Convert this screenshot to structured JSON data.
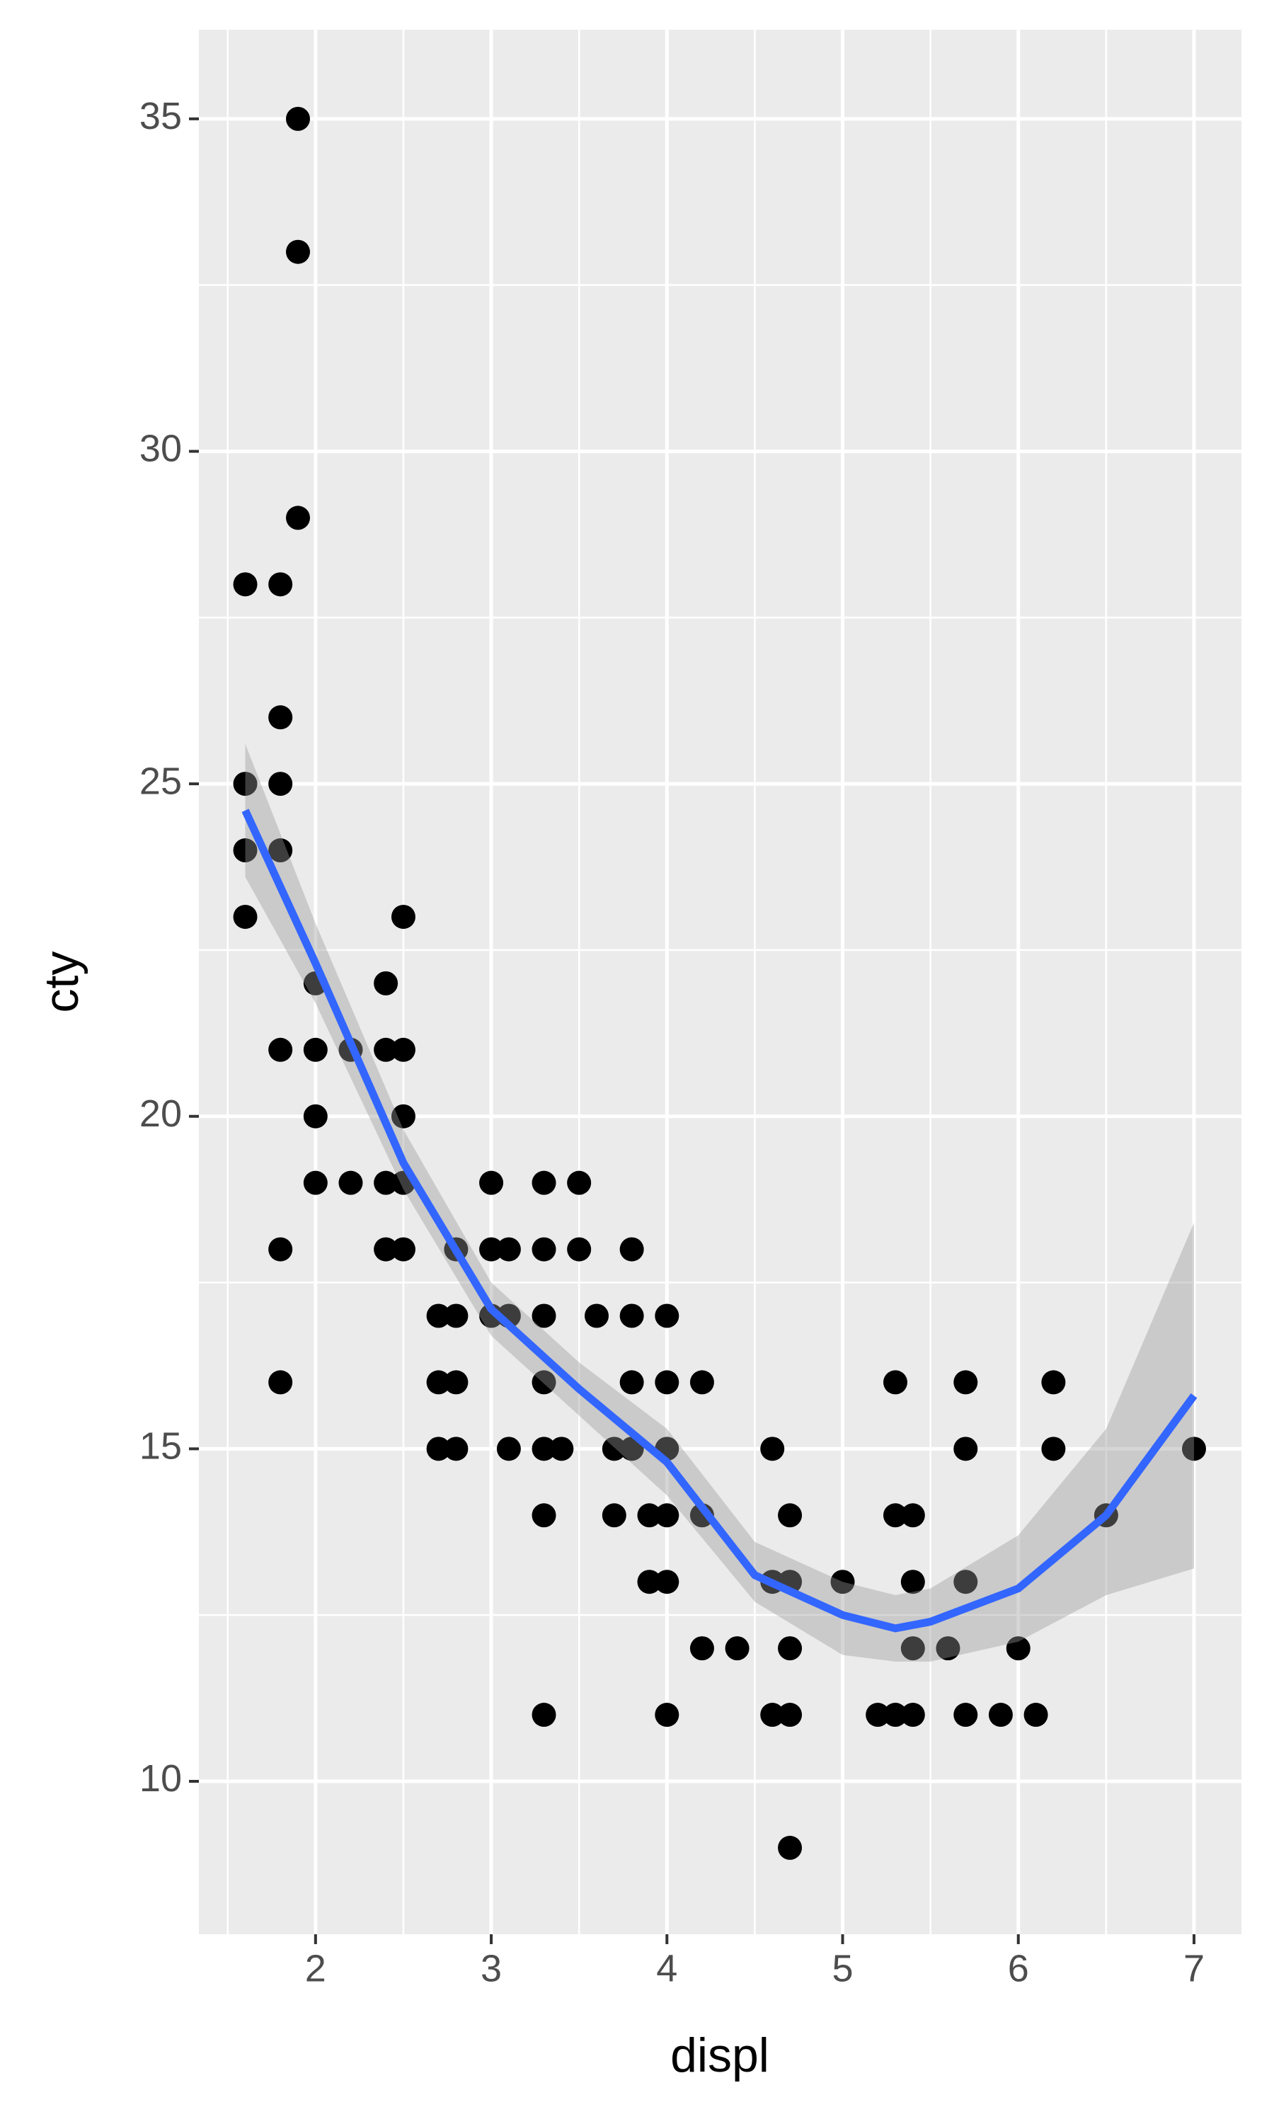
{
  "chart_data": {
    "type": "scatter",
    "x_label": "displ",
    "y_label": "cty",
    "x": [
      1.6,
      1.6,
      1.6,
      1.6,
      1.8,
      1.8,
      1.8,
      1.8,
      1.8,
      1.8,
      1.8,
      1.9,
      1.9,
      1.9,
      2.0,
      2.0,
      2.0,
      2.0,
      2.2,
      2.2,
      2.4,
      2.4,
      2.4,
      2.4,
      2.5,
      2.5,
      2.5,
      2.5,
      2.5,
      2.7,
      2.7,
      2.7,
      2.8,
      2.8,
      2.8,
      2.8,
      3.0,
      3.0,
      3.0,
      3.1,
      3.1,
      3.1,
      3.3,
      3.3,
      3.3,
      3.3,
      3.3,
      3.3,
      3.3,
      3.4,
      3.5,
      3.5,
      3.6,
      3.7,
      3.7,
      3.8,
      3.8,
      3.8,
      3.8,
      3.9,
      3.9,
      4.0,
      4.0,
      4.0,
      4.0,
      4.0,
      4.0,
      4.2,
      4.2,
      4.2,
      4.4,
      4.6,
      4.6,
      4.6,
      4.7,
      4.7,
      4.7,
      4.7,
      4.7,
      5.0,
      5.2,
      5.3,
      5.3,
      5.3,
      5.4,
      5.4,
      5.4,
      5.4,
      5.6,
      5.7,
      5.7,
      5.7,
      5.7,
      5.9,
      6.0,
      6.1,
      6.2,
      6.2,
      6.5,
      7.0
    ],
    "values": [
      28,
      25,
      24,
      23,
      28,
      26,
      25,
      24,
      21,
      18,
      16,
      35,
      33,
      29,
      22,
      21,
      20,
      19,
      21,
      19,
      22,
      21,
      19,
      18,
      23,
      21,
      20,
      19,
      18,
      17,
      16,
      15,
      18,
      17,
      16,
      15,
      19,
      18,
      17,
      18,
      17,
      15,
      19,
      18,
      17,
      16,
      15,
      14,
      11,
      15,
      19,
      18,
      17,
      15,
      14,
      18,
      17,
      16,
      15,
      14,
      13,
      17,
      16,
      15,
      14,
      13,
      11,
      16,
      14,
      12,
      12,
      15,
      13,
      11,
      14,
      13,
      12,
      11,
      9,
      13,
      11,
      16,
      14,
      11,
      14,
      13,
      12,
      11,
      12,
      16,
      15,
      13,
      11,
      11,
      12,
      11,
      16,
      15,
      14,
      15
    ],
    "color": "#000000",
    "smooth": {
      "x": [
        1.6,
        2.0,
        2.5,
        3.0,
        3.5,
        4.0,
        4.5,
        5.0,
        5.3,
        5.5,
        6.0,
        6.5,
        7.0
      ],
      "values": [
        24.6,
        22.3,
        19.3,
        17.1,
        15.9,
        14.8,
        13.1,
        12.5,
        12.3,
        12.4,
        12.9,
        14.0,
        15.8
      ],
      "lower": [
        23.6,
        21.7,
        18.9,
        16.7,
        15.5,
        14.3,
        12.7,
        11.9,
        11.8,
        11.8,
        12.1,
        12.8,
        13.2
      ],
      "upper": [
        25.6,
        22.9,
        19.8,
        17.5,
        16.3,
        15.3,
        13.6,
        13.0,
        12.8,
        12.9,
        13.7,
        15.3,
        18.4
      ],
      "color": "#3366ff",
      "band_color": "#999999"
    },
    "xlim": [
      1.336,
      7.27
    ],
    "ylim": [
      7.7,
      36.34
    ],
    "xticks": [
      2,
      3,
      4,
      5,
      6,
      7
    ],
    "yticks": [
      10,
      15,
      20,
      25,
      30,
      35
    ],
    "grid": true
  }
}
